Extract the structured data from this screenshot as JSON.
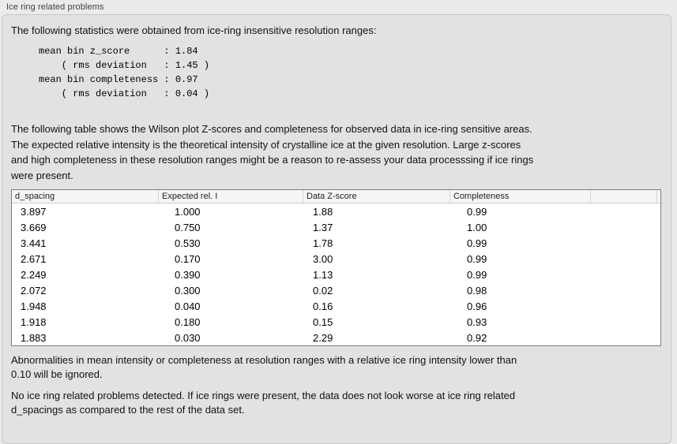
{
  "panel": {
    "title": "Ice ring related problems"
  },
  "sections": {
    "intro": "The following statistics were obtained from ice-ring insensitive resolution ranges:",
    "stats_block": "mean bin z_score      : 1.84\n    ( rms deviation   : 1.45 )\nmean bin completeness : 0.97\n    ( rms deviation   : 0.04 )",
    "stats": {
      "mean_bin_z_score": "1.84",
      "z_score_rms_deviation": "1.45",
      "mean_bin_completeness": "0.97",
      "completeness_rms_deviation": "0.04"
    },
    "table_note": "The following table shows the Wilson plot Z-scores and completeness for observed data in ice-ring sensitive areas.\nThe expected relative intensity is the theoretical intensity of crystalline ice at the given resolution. Large z-scores\nand high completeness in these resolution ranges might be a reason to re-assess your data processsing if ice rings\nwere present.",
    "ignore_note": "Abnormalities in mean intensity or completeness at resolution ranges with a relative ice ring intensity lower than\n0.10 will be ignored.",
    "conclusion": "No ice ring related problems detected. If ice rings were present, the data does not look worse at ice ring related\nd_spacings as compared to the rest of the data set."
  },
  "table": {
    "columns": [
      "d_spacing",
      "Expected rel. I",
      "Data Z-score",
      "Completeness",
      ""
    ],
    "rows": [
      [
        "3.897",
        "1.000",
        "1.88",
        "0.99"
      ],
      [
        "3.669",
        "0.750",
        "1.37",
        "1.00"
      ],
      [
        "3.441",
        "0.530",
        "1.78",
        "0.99"
      ],
      [
        "2.671",
        "0.170",
        "3.00",
        "0.99"
      ],
      [
        "2.249",
        "0.390",
        "1.13",
        "0.99"
      ],
      [
        "2.072",
        "0.300",
        "0.02",
        "0.98"
      ],
      [
        "1.948",
        "0.040",
        "0.16",
        "0.96"
      ],
      [
        "1.918",
        "0.180",
        "0.15",
        "0.93"
      ],
      [
        "1.883",
        "0.030",
        "2.29",
        "0.92"
      ]
    ]
  },
  "colors": {
    "page_bg": "#ebebeb",
    "panel_bg": "#e2e2e2",
    "panel_border": "#c7c7c7",
    "table_border": "#7d7d7d",
    "table_header_bg": "#f5f5f5",
    "text": "#121212"
  }
}
